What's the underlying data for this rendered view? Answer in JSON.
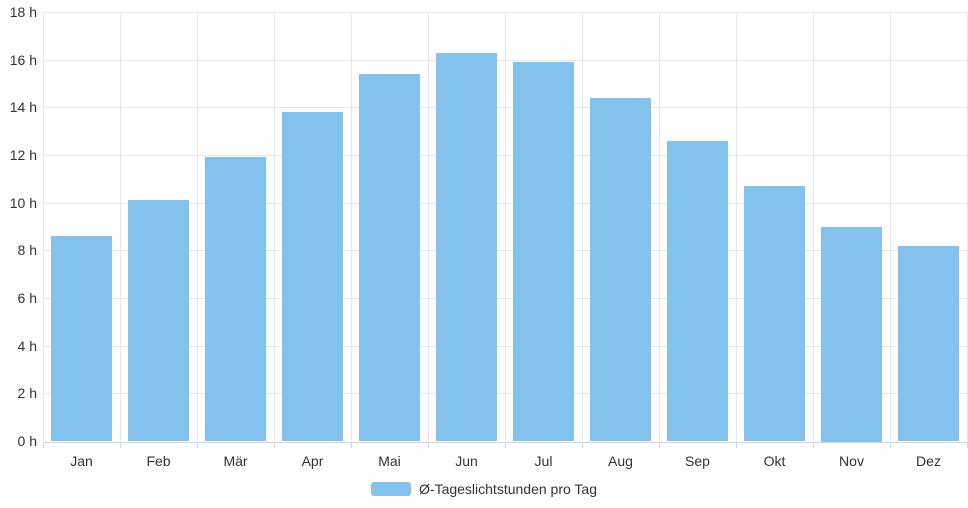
{
  "chart_data": {
    "type": "bar",
    "title": "",
    "xlabel": "",
    "ylabel": "",
    "categories": [
      "Jan",
      "Feb",
      "Mär",
      "Apr",
      "Mai",
      "Jun",
      "Jul",
      "Aug",
      "Sep",
      "Okt",
      "Nov",
      "Dez"
    ],
    "series": [
      {
        "name": "Ø-Tageslichtstunden pro Tag",
        "values": [
          8.6,
          10.1,
          11.9,
          13.8,
          15.4,
          16.3,
          15.9,
          14.4,
          12.6,
          10.7,
          9.0,
          8.2
        ]
      }
    ],
    "ylim": [
      0,
      18
    ],
    "ytick_step": 2,
    "ytick_suffix": " h",
    "grid": true,
    "legend_position": "bottom-center"
  },
  "legend": {
    "label": "Ø-Tageslichtstunden pro Tag"
  },
  "colors": {
    "bar": "#84c2ee",
    "gridline": "#e6e6e6",
    "axis_line": "#ccd6eb",
    "text": "#333333",
    "background": "#ffffff"
  }
}
